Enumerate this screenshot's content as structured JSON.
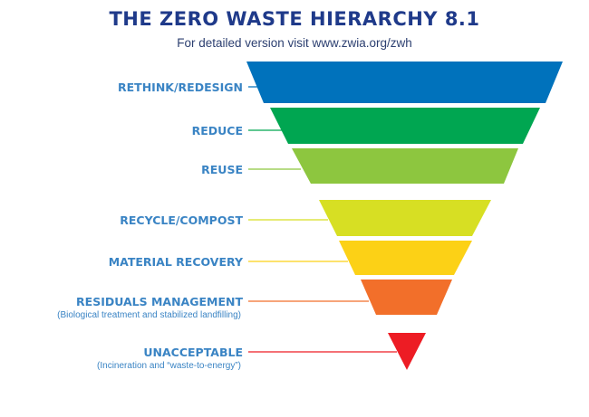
{
  "header": {
    "title": "THE ZERO WASTE HIERARCHY 8.1",
    "subtitle": "For detailed version visit www.zwia.org/zwh"
  },
  "levels": [
    {
      "label": "RETHINK/REDESIGN",
      "note": "",
      "color": "#0072bc"
    },
    {
      "label": "REDUCE",
      "note": "",
      "color": "#00a651"
    },
    {
      "label": "REUSE",
      "note": "",
      "color": "#8dc63f"
    },
    {
      "label": "RECYCLE/COMPOST",
      "note": "",
      "color": "#d7df23"
    },
    {
      "label": "MATERIAL RECOVERY",
      "note": "",
      "color": "#fcd116"
    },
    {
      "label": "RESIDUALS MANAGEMENT",
      "note": "(Biological treatment and stabilized landfilling)",
      "color": "#f26f2a"
    },
    {
      "label": "UNACCEPTABLE",
      "note": "(Incineration and “waste-to-energy”)",
      "color": "#ed1c24"
    }
  ]
}
